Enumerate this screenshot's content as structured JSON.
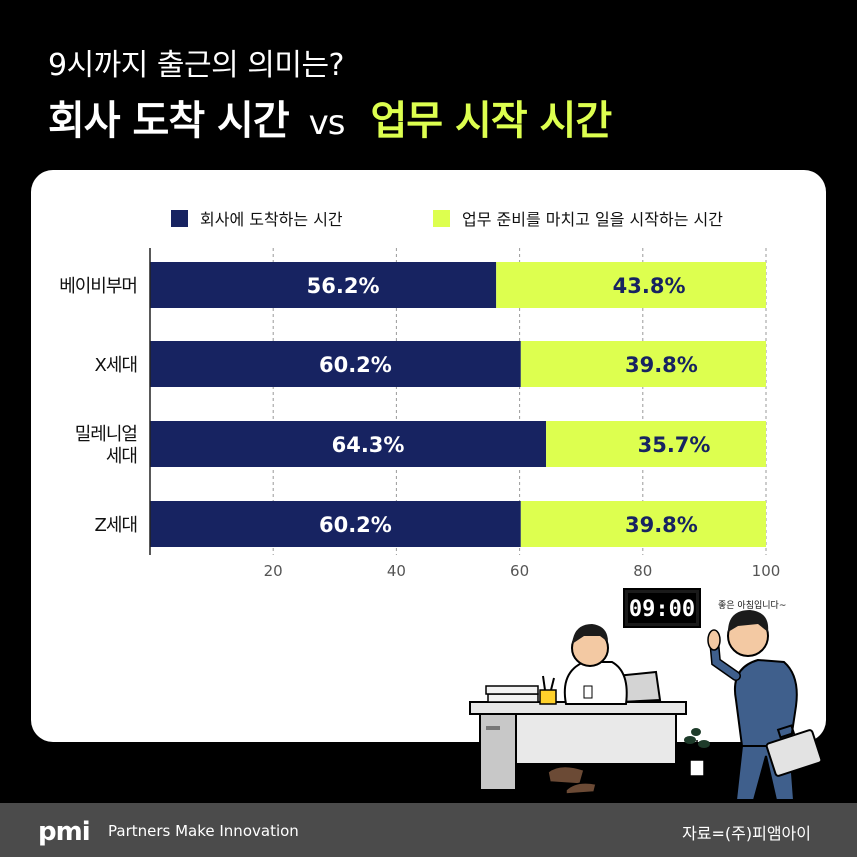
{
  "header": {
    "subtitle": "9시까지 출근의 의미는?",
    "title_part1": "회사 도착 시간",
    "title_vs": "vs",
    "title_part2": "업무 시작 시간"
  },
  "colors": {
    "navy": "#172361",
    "lime": "#ddff4f",
    "title_accent": "#ddff4f"
  },
  "chart_data": {
    "type": "bar",
    "orientation": "horizontal",
    "stacked": true,
    "categories": [
      "베이비부머",
      "X세대",
      "밀레니얼 세대",
      "Z세대"
    ],
    "category_lines": [
      [
        "베이비부머"
      ],
      [
        "X세대"
      ],
      [
        "밀레니얼",
        "세대"
      ],
      [
        "Z세대"
      ]
    ],
    "series": [
      {
        "name": "회사에 도착하는 시간",
        "values": [
          56.2,
          60.2,
          64.3,
          60.2
        ],
        "color": "#172361"
      },
      {
        "name": "업무 준비를 마치고 일을 시작하는 시간",
        "values": [
          43.8,
          39.8,
          35.7,
          39.8
        ],
        "color": "#ddff4f"
      }
    ],
    "value_suffix": "%",
    "xlim": [
      0,
      100
    ],
    "xticks": [
      20,
      40,
      60,
      80,
      100
    ],
    "grid": true,
    "legend_position": "top"
  },
  "illustration": {
    "clock_text": "09:00",
    "speech_text": "좋은 아침입니다~"
  },
  "footer": {
    "logo": "pmi",
    "tagline": "Partners Make Innovation",
    "source": "자료=(주)피앰아이"
  }
}
